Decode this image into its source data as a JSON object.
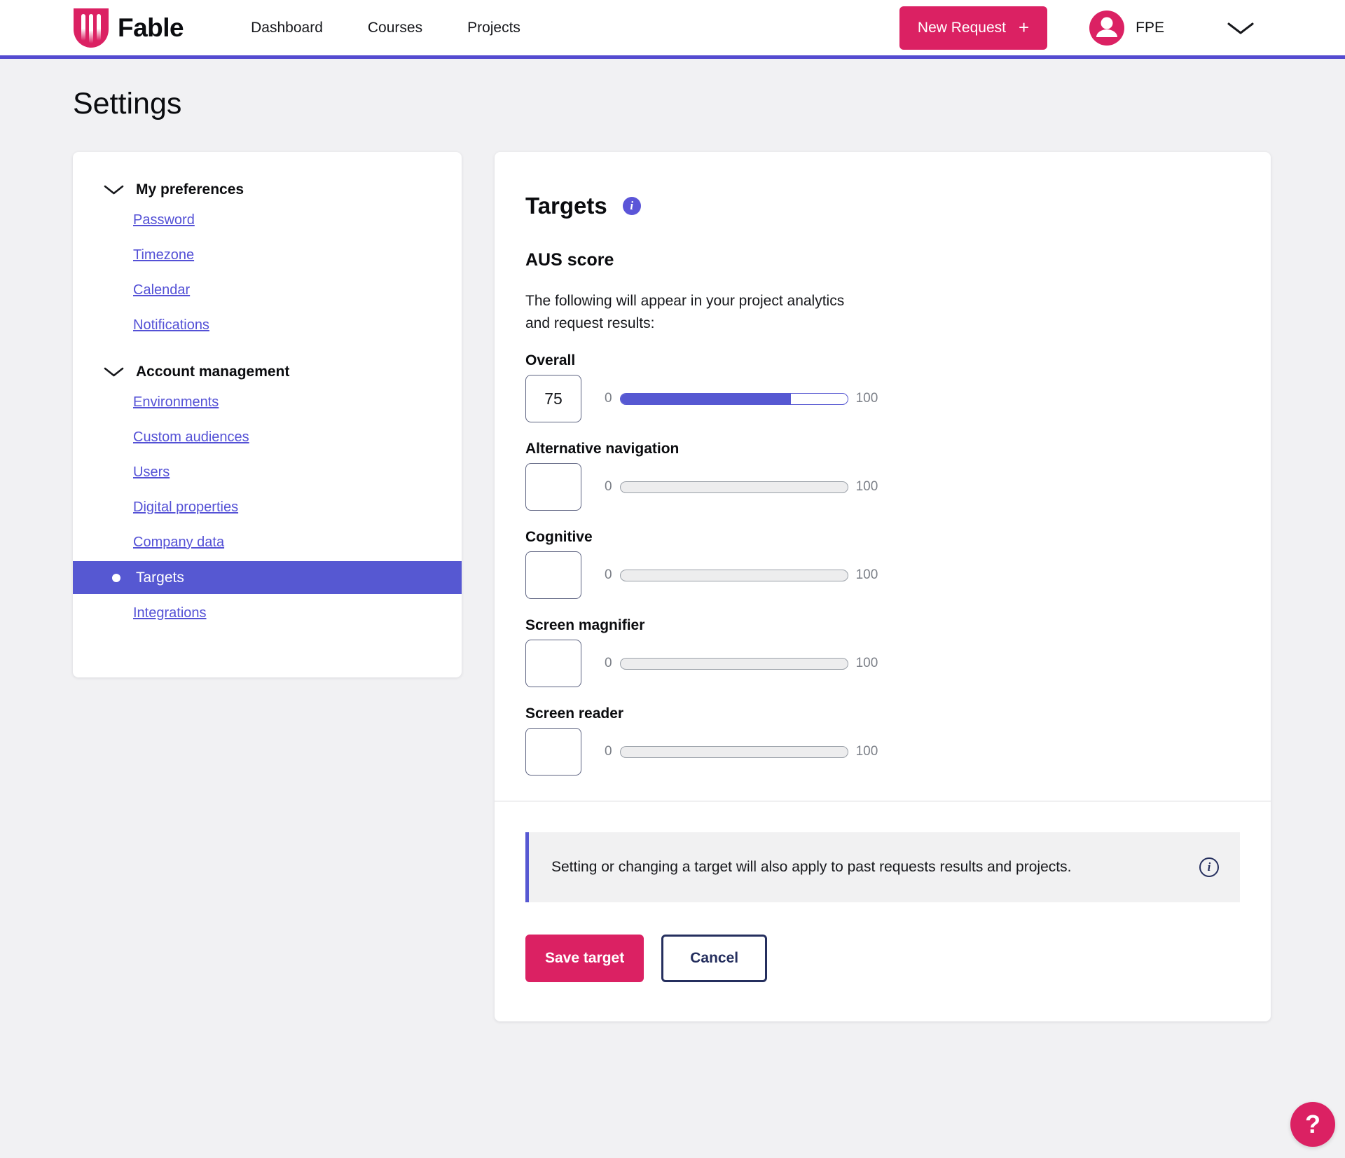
{
  "header": {
    "brand": "Fable",
    "nav": [
      {
        "label": "Dashboard"
      },
      {
        "label": "Courses"
      },
      {
        "label": "Projects"
      }
    ],
    "new_request_label": "New Request",
    "new_request_plus": "+",
    "user_label": "FPE"
  },
  "page": {
    "title": "Settings"
  },
  "sidebar": {
    "sections": [
      {
        "title": "My preferences",
        "links": [
          "Password",
          "Timezone",
          "Calendar",
          "Notifications"
        ]
      },
      {
        "title": "Account management",
        "links": [
          "Environments",
          "Custom audiences",
          "Users",
          "Digital properties",
          "Company data",
          "Targets",
          "Integrations"
        ],
        "active_link": "Targets"
      }
    ]
  },
  "panel": {
    "title": "Targets",
    "subtitle": "AUS score",
    "description": "The following will appear in your project analytics and request results:",
    "fields": [
      {
        "label": "Overall",
        "value": "75",
        "min": "0",
        "max": "100",
        "percent": 75
      },
      {
        "label": "Alternative navigation",
        "value": "",
        "min": "0",
        "max": "100",
        "percent": 0
      },
      {
        "label": "Cognitive",
        "value": "",
        "min": "0",
        "max": "100",
        "percent": 0
      },
      {
        "label": "Screen magnifier",
        "value": "",
        "min": "0",
        "max": "100",
        "percent": 0
      },
      {
        "label": "Screen reader",
        "value": "",
        "min": "0",
        "max": "100",
        "percent": 0
      }
    ],
    "notice": "Setting or changing a target will also apply to past requests results and projects.",
    "save_label": "Save target",
    "cancel_label": "Cancel"
  },
  "help": {
    "label": "?"
  },
  "colors": {
    "accent_purple": "#5658d2",
    "header_border_purple": "#544bd0",
    "brand_pink": "#db2163",
    "navy": "#252f5e",
    "page_background": "#f1f1f3"
  }
}
